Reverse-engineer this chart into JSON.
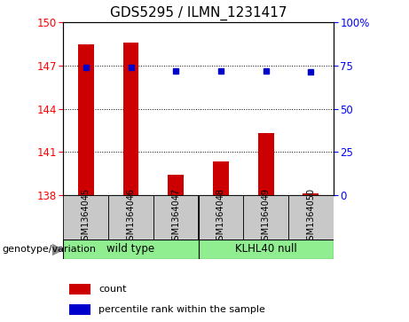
{
  "title": "GDS5295 / ILMN_1231417",
  "samples": [
    "GSM1364045",
    "GSM1364046",
    "GSM1364047",
    "GSM1364048",
    "GSM1364049",
    "GSM1364050"
  ],
  "bar_heights": [
    148.5,
    148.6,
    139.4,
    140.3,
    142.3,
    138.1
  ],
  "percentile_values_left": [
    146.85,
    146.85,
    146.65,
    146.65,
    146.65,
    146.55
  ],
  "ylim_left": [
    138,
    150
  ],
  "ylim_right": [
    0,
    100
  ],
  "yticks_left": [
    138,
    141,
    144,
    147,
    150
  ],
  "yticks_right": [
    0,
    25,
    50,
    75,
    100
  ],
  "ytick_right_labels": [
    "0",
    "25",
    "50",
    "75",
    "100%"
  ],
  "bar_color": "#cc0000",
  "dot_color": "#0000cc",
  "group1_label": "wild type",
  "group2_label": "KLHL40 null",
  "group_color": "#90ee90",
  "sample_box_color": "#c8c8c8",
  "genotype_label": "genotype/variation",
  "legend_count_label": "count",
  "legend_percentile_label": "percentile rank within the sample",
  "bar_width": 0.35,
  "title_fontsize": 11,
  "tick_fontsize": 8.5,
  "label_fontsize": 8
}
